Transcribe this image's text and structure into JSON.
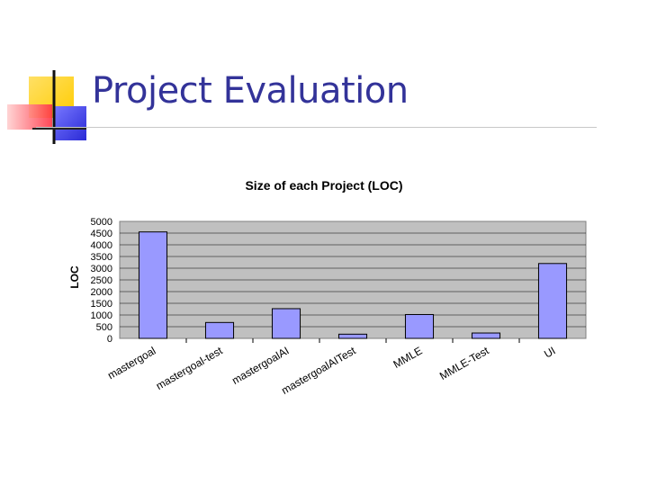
{
  "slide": {
    "title": "Project Evaluation"
  },
  "colors": {
    "title": "#333399",
    "bar": "#9999ff",
    "plot_bg": "#c0c0c0",
    "logo_yellow": "#ffcc00",
    "logo_red": "#ff5c66",
    "logo_blue": "#3d3dff"
  },
  "chart_data": {
    "type": "bar",
    "title": "Size of each Project (LOC)",
    "ylabel": "LOC",
    "xlabel": "",
    "ylim": [
      0,
      5000
    ],
    "yticks": [
      "5000",
      "4500",
      "4000",
      "3500",
      "3000",
      "2500",
      "2000",
      "1500",
      "1000",
      "500",
      "0"
    ],
    "grid": true,
    "legend": "none",
    "categories": [
      "mastergoal",
      "mastergoal-test",
      "mastergoalAI",
      "mastergoalAITest",
      "MMLE",
      "MMLE-Test",
      "UI"
    ],
    "values": [
      4550,
      680,
      1270,
      180,
      1020,
      230,
      3200
    ]
  }
}
